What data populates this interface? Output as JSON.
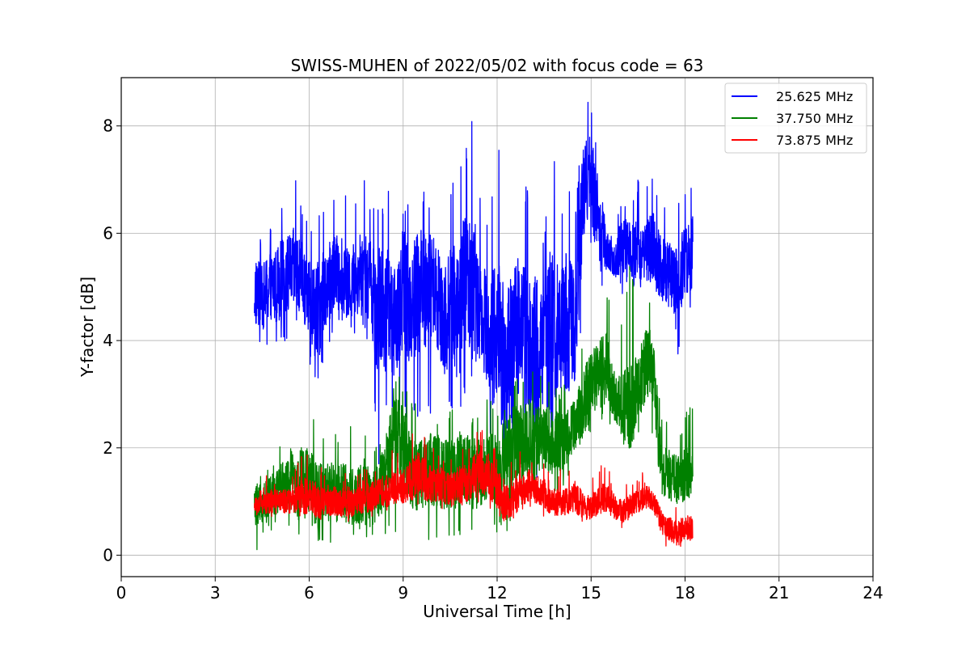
{
  "chart_data": {
    "type": "line",
    "title": "SWISS-MUHEN of 2022/05/02 with focus code = 63",
    "xlabel": "Universal Time [h]",
    "ylabel": "Y-factor [dB]",
    "xlim": [
      0,
      24
    ],
    "ylim": [
      -0.4,
      8.9
    ],
    "xticks": [
      0,
      3,
      6,
      9,
      12,
      15,
      18,
      21,
      24
    ],
    "yticks": [
      0,
      2,
      4,
      6,
      8
    ],
    "xtick_labels": [
      "0",
      "3",
      "6",
      "9",
      "12",
      "15",
      "18",
      "21",
      "24"
    ],
    "ytick_labels": [
      "0",
      "2",
      "4",
      "6",
      "8"
    ],
    "grid": true,
    "legend_position": "top-right",
    "series": [
      {
        "name": "25.625 MHz",
        "color": "#0000ff",
        "x": [
          4.25,
          4.5,
          4.75,
          5.0,
          5.25,
          5.5,
          5.75,
          6.0,
          6.25,
          6.5,
          6.75,
          7.0,
          7.25,
          7.5,
          7.75,
          8.0,
          8.25,
          8.5,
          8.75,
          9.0,
          9.25,
          9.5,
          9.75,
          10.0,
          10.25,
          10.5,
          10.75,
          11.0,
          11.25,
          11.5,
          11.75,
          12.0,
          12.25,
          12.5,
          12.75,
          13.0,
          13.25,
          13.5,
          13.75,
          14.0,
          14.25,
          14.5,
          14.75,
          15.0,
          15.25,
          15.5,
          15.75,
          16.0,
          16.25,
          16.5,
          16.75,
          17.0,
          17.25,
          17.5,
          17.75,
          18.0,
          18.25
        ],
        "center": [
          4.9,
          4.8,
          5.0,
          5.1,
          5.2,
          5.3,
          5.1,
          4.8,
          4.5,
          4.9,
          5.2,
          5.3,
          5.0,
          5.2,
          5.4,
          5.0,
          4.4,
          4.6,
          4.3,
          5.0,
          4.7,
          5.0,
          4.8,
          5.1,
          4.4,
          4.6,
          4.6,
          5.2,
          5.0,
          4.6,
          4.0,
          4.2,
          3.6,
          3.7,
          4.6,
          3.8,
          3.7,
          3.9,
          4.1,
          4.0,
          4.4,
          4.2,
          6.8,
          7.0,
          6.2,
          5.6,
          5.5,
          5.8,
          5.7,
          5.7,
          5.8,
          5.7,
          5.3,
          5.2,
          5.0,
          5.5,
          5.6
        ],
        "low": [
          3.8,
          3.8,
          3.7,
          3.9,
          4.0,
          4.3,
          3.9,
          3.6,
          3.1,
          3.6,
          4.1,
          4.4,
          4.2,
          4.1,
          4.3,
          3.4,
          1.4,
          3.0,
          2.2,
          2.6,
          2.4,
          2.6,
          2.5,
          2.7,
          2.2,
          2.8,
          2.3,
          3.0,
          3.2,
          2.8,
          2.2,
          2.3,
          1.5,
          0.0,
          2.2,
          1.8,
          1.2,
          1.8,
          1.8,
          1.8,
          2.2,
          2.8,
          4.9,
          5.6,
          4.4,
          5.4,
          5.2,
          4.8,
          5.0,
          4.8,
          4.7,
          4.5,
          4.2,
          4.6,
          3.4,
          4.5,
          4.5
        ],
        "high": [
          6.2,
          6.0,
          6.2,
          6.6,
          6.6,
          7.2,
          6.6,
          6.2,
          6.5,
          6.6,
          6.8,
          6.9,
          6.6,
          6.8,
          7.1,
          6.6,
          6.4,
          7.0,
          5.8,
          6.6,
          6.8,
          7.3,
          6.5,
          6.5,
          6.3,
          6.8,
          7.3,
          7.6,
          8.3,
          6.3,
          6.1,
          8.0,
          6.5,
          5.5,
          6.8,
          6.9,
          6.6,
          6.0,
          8.2,
          6.2,
          7.2,
          6.5,
          8.4,
          8.5,
          7.6,
          7.0,
          6.6,
          6.7,
          6.8,
          7.0,
          7.1,
          7.1,
          6.5,
          6.9,
          6.6,
          6.8,
          7.1
        ]
      },
      {
        "name": "37.750 MHz",
        "color": "#008000",
        "x": [
          4.25,
          4.5,
          4.75,
          5.0,
          5.25,
          5.5,
          5.75,
          6.0,
          6.25,
          6.5,
          6.75,
          7.0,
          7.25,
          7.5,
          7.75,
          8.0,
          8.25,
          8.5,
          8.75,
          9.0,
          9.25,
          9.5,
          9.75,
          10.0,
          10.25,
          10.5,
          10.75,
          11.0,
          11.25,
          11.5,
          11.75,
          12.0,
          12.25,
          12.5,
          12.75,
          13.0,
          13.25,
          13.5,
          13.75,
          14.0,
          14.25,
          14.5,
          14.75,
          15.0,
          15.25,
          15.5,
          15.75,
          16.0,
          16.25,
          16.5,
          16.75,
          17.0,
          17.25,
          17.5,
          17.75,
          18.0,
          18.25
        ],
        "center": [
          0.9,
          1.0,
          1.1,
          1.2,
          1.3,
          1.2,
          1.3,
          1.4,
          1.2,
          1.1,
          1.2,
          1.2,
          1.1,
          1.1,
          1.2,
          1.0,
          1.2,
          1.7,
          2.2,
          2.0,
          1.6,
          1.5,
          1.6,
          1.6,
          1.5,
          1.5,
          1.6,
          1.6,
          1.5,
          1.6,
          1.6,
          1.6,
          1.8,
          2.0,
          2.1,
          2.2,
          2.1,
          2.2,
          2.1,
          2.1,
          2.2,
          2.4,
          2.8,
          3.2,
          3.4,
          3.5,
          3.0,
          2.8,
          2.6,
          3.1,
          3.6,
          3.4,
          1.6,
          1.5,
          1.4,
          1.5,
          1.6
        ],
        "low": [
          0.0,
          0.3,
          0.4,
          0.4,
          0.5,
          0.0,
          0.3,
          0.4,
          0.3,
          0.0,
          0.3,
          0.4,
          0.3,
          0.3,
          0.3,
          0.2,
          0.3,
          0.3,
          0.3,
          0.4,
          0.3,
          0.3,
          0.2,
          0.3,
          0.1,
          0.3,
          0.2,
          0.3,
          0.2,
          0.5,
          0.5,
          0.3,
          0.4,
          0.5,
          0.8,
          1.0,
          1.0,
          1.2,
          1.1,
          1.2,
          1.4,
          1.5,
          1.8,
          2.3,
          2.6,
          2.4,
          2.4,
          2.0,
          2.0,
          2.2,
          2.2,
          2.2,
          0.9,
          0.8,
          0.7,
          0.8,
          1.0
        ],
        "high": [
          1.4,
          1.8,
          1.7,
          2.0,
          2.3,
          2.0,
          2.9,
          2.7,
          2.5,
          2.1,
          2.5,
          2.3,
          2.5,
          2.2,
          2.6,
          2.0,
          2.3,
          2.9,
          3.5,
          3.2,
          2.9,
          2.8,
          2.6,
          2.8,
          2.6,
          2.7,
          2.8,
          2.8,
          2.6,
          3.0,
          2.9,
          2.8,
          3.0,
          3.3,
          3.4,
          3.6,
          3.4,
          3.5,
          3.3,
          3.2,
          3.2,
          3.5,
          4.2,
          4.4,
          4.9,
          5.0,
          4.2,
          4.6,
          5.5,
          4.5,
          4.9,
          4.6,
          2.6,
          2.5,
          2.4,
          2.6,
          3.0
        ]
      },
      {
        "name": "73.875 MHz",
        "color": "#ff0000",
        "x": [
          4.25,
          4.5,
          4.75,
          5.0,
          5.25,
          5.5,
          5.75,
          6.0,
          6.25,
          6.5,
          6.75,
          7.0,
          7.25,
          7.5,
          7.75,
          8.0,
          8.25,
          8.5,
          8.75,
          9.0,
          9.25,
          9.5,
          9.75,
          10.0,
          10.25,
          10.5,
          10.75,
          11.0,
          11.25,
          11.5,
          11.75,
          12.0,
          12.25,
          12.5,
          12.75,
          13.0,
          13.25,
          13.5,
          13.75,
          14.0,
          14.25,
          14.5,
          14.75,
          15.0,
          15.25,
          15.5,
          15.75,
          16.0,
          16.25,
          16.5,
          16.75,
          17.0,
          17.25,
          17.5,
          17.75,
          18.0,
          18.25
        ],
        "center": [
          0.9,
          1.0,
          1.0,
          1.0,
          1.0,
          1.0,
          1.1,
          1.1,
          1.0,
          1.0,
          1.0,
          1.0,
          1.0,
          1.0,
          1.1,
          1.1,
          1.2,
          1.2,
          1.3,
          1.3,
          1.4,
          1.5,
          1.4,
          1.3,
          1.3,
          1.2,
          1.3,
          1.3,
          1.5,
          1.6,
          1.5,
          1.2,
          1.0,
          1.0,
          1.2,
          1.3,
          1.2,
          1.1,
          1.0,
          1.0,
          1.0,
          1.1,
          0.9,
          0.9,
          1.0,
          1.1,
          0.9,
          0.8,
          0.9,
          1.0,
          1.1,
          1.0,
          0.6,
          0.5,
          0.4,
          0.5,
          0.5
        ],
        "low": [
          0.7,
          0.7,
          0.7,
          0.7,
          0.8,
          0.7,
          0.7,
          0.7,
          0.6,
          0.6,
          0.6,
          0.5,
          0.5,
          0.6,
          0.6,
          0.7,
          0.8,
          0.8,
          0.8,
          0.8,
          0.9,
          0.9,
          0.8,
          0.8,
          0.8,
          0.8,
          0.8,
          0.8,
          0.9,
          1.0,
          0.9,
          0.5,
          0.3,
          0.6,
          0.8,
          0.9,
          0.8,
          0.7,
          0.7,
          0.7,
          0.7,
          0.7,
          0.6,
          0.6,
          0.7,
          0.8,
          0.6,
          0.5,
          0.6,
          0.7,
          0.8,
          0.7,
          0.2,
          0.1,
          0.0,
          0.1,
          0.2
        ],
        "high": [
          1.3,
          1.7,
          1.5,
          1.5,
          1.6,
          1.5,
          2.1,
          1.8,
          1.9,
          1.5,
          1.6,
          1.5,
          1.6,
          1.5,
          1.8,
          1.8,
          1.8,
          1.9,
          2.0,
          2.0,
          2.3,
          2.5,
          2.2,
          2.0,
          2.0,
          1.9,
          2.1,
          2.2,
          2.3,
          2.6,
          2.4,
          2.0,
          1.7,
          1.8,
          2.0,
          2.0,
          1.9,
          1.7,
          1.6,
          1.7,
          1.6,
          1.8,
          1.5,
          1.5,
          1.6,
          1.9,
          1.4,
          1.3,
          1.4,
          1.5,
          1.6,
          1.4,
          1.0,
          0.9,
          0.9,
          1.0,
          1.0
        ]
      }
    ]
  }
}
